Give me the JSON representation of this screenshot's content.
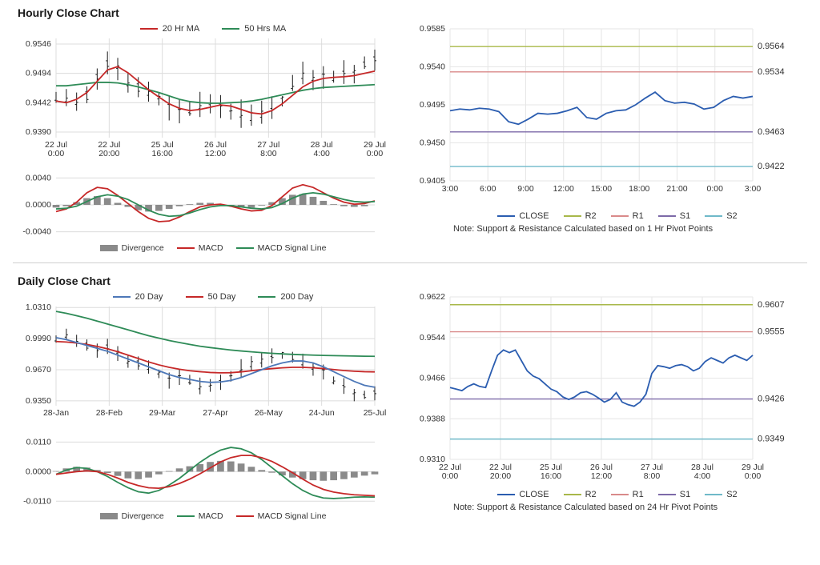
{
  "sections": {
    "hourly": {
      "title": "Hourly Close Chart",
      "left": {
        "price": {
          "type": "ohlc+ma",
          "yticks": [
            0.939,
            0.9442,
            0.9494,
            0.9546
          ],
          "ylim": [
            0.938,
            0.9556
          ],
          "xticks": [
            "22 Jul\n0:00",
            "22 Jul\n20:00",
            "25 Jul\n16:00",
            "26 Jul\n12:00",
            "27 Jul\n8:00",
            "28 Jul\n4:00",
            "29 Jul\n0:00"
          ],
          "xcount": 55,
          "legend": [
            {
              "label": "20 Hr MA",
              "color": "#c62828"
            },
            {
              "label": "50 Hrs MA",
              "color": "#2e8b57"
            }
          ],
          "colors": {
            "ohlc": "#1a1a1a",
            "ma20": "#c62828",
            "ma50": "#2e8b57",
            "grid": "#dcdcdc",
            "axis": "#9a9a9a"
          },
          "ohlc_amp": 0.0026,
          "ohlc_center_curve": [
            0.945,
            0.9445,
            0.9442,
            0.9455,
            0.949,
            0.951,
            0.95,
            0.9478,
            0.947,
            0.9462,
            0.9452,
            0.9435,
            0.9428,
            0.943,
            0.9438,
            0.9443,
            0.944,
            0.9428,
            0.9422,
            0.9418,
            0.9422,
            0.943,
            0.9445,
            0.9472,
            0.949,
            0.9488,
            0.9485,
            0.9488,
            0.9493,
            0.9498,
            0.951,
            0.9518
          ],
          "ma20": [
            0.9445,
            0.9442,
            0.9448,
            0.946,
            0.948,
            0.95,
            0.9506,
            0.9495,
            0.948,
            0.9465,
            0.9452,
            0.944,
            0.9432,
            0.9428,
            0.943,
            0.9434,
            0.9438,
            0.9436,
            0.943,
            0.9424,
            0.9422,
            0.9428,
            0.944,
            0.9455,
            0.947,
            0.948,
            0.9485,
            0.9487,
            0.9488,
            0.949,
            0.9494,
            0.9498
          ],
          "ma50": [
            0.9472,
            0.9472,
            0.9474,
            0.9476,
            0.9478,
            0.9478,
            0.9477,
            0.9474,
            0.947,
            0.9465,
            0.946,
            0.9454,
            0.9448,
            0.9444,
            0.9442,
            0.9441,
            0.9441,
            0.9442,
            0.9443,
            0.9445,
            0.9448,
            0.9452,
            0.9456,
            0.946,
            0.9464,
            0.9467,
            0.9469,
            0.947,
            0.9471,
            0.9472,
            0.9473,
            0.9474
          ]
        },
        "macd": {
          "type": "macd",
          "yticks": [
            -0.004,
            0.0,
            0.004
          ],
          "ylim": [
            -0.005,
            0.005
          ],
          "colors": {
            "divergence": "#8a8a8a",
            "macd": "#c62828",
            "signal": "#2e8b57",
            "axis": "#9a9a9a",
            "grid": "#dcdcdc"
          },
          "legend": [
            {
              "label": "Divergence",
              "kind": "bar",
              "color": "#8a8a8a"
            },
            {
              "label": "MACD",
              "kind": "line",
              "color": "#c62828"
            },
            {
              "label": "MACD Signal Line",
              "kind": "line",
              "color": "#2e8b57"
            }
          ],
          "divergence": [
            -0.0004,
            -0.0002,
            0.0004,
            0.001,
            0.0013,
            0.001,
            0.0003,
            -0.0003,
            -0.0008,
            -0.001,
            -0.0009,
            -0.0006,
            -0.0002,
            0.0001,
            0.0003,
            0.0003,
            0.0001,
            -0.0002,
            -0.0004,
            -0.0004,
            -0.0001,
            0.0004,
            0.001,
            0.0015,
            0.0016,
            0.0012,
            0.0006,
            0.0001,
            -0.0002,
            -0.0003,
            -0.0002,
            0.0
          ],
          "macd_line": [
            -0.001,
            -0.0006,
            0.0004,
            0.0018,
            0.0026,
            0.0024,
            0.0014,
            0.0002,
            -0.001,
            -0.002,
            -0.0025,
            -0.0024,
            -0.0018,
            -0.001,
            -0.0003,
            0.0,
            0.0001,
            -0.0002,
            -0.0006,
            -0.0009,
            -0.0008,
            -0.0001,
            0.0012,
            0.0025,
            0.003,
            0.0026,
            0.0018,
            0.001,
            0.0004,
            0.0001,
            0.0002,
            0.0006
          ],
          "signal_line": [
            -0.0006,
            -0.0005,
            -0.0002,
            0.0005,
            0.0012,
            0.0015,
            0.0013,
            0.0008,
            0.0,
            -0.0008,
            -0.0014,
            -0.0017,
            -0.0016,
            -0.0012,
            -0.0007,
            -0.0003,
            -0.0001,
            -0.0001,
            -0.0003,
            -0.0005,
            -0.0006,
            -0.0004,
            0.0002,
            0.001,
            0.0016,
            0.0018,
            0.0016,
            0.0012,
            0.0008,
            0.0005,
            0.0004,
            0.0005
          ]
        }
      },
      "right": {
        "type": "levels",
        "ylim": [
          0.9405,
          0.9585
        ],
        "yticks": [
          0.9405,
          0.945,
          0.9495,
          0.954,
          0.9585
        ],
        "xticks": [
          "3:00",
          "6:00",
          "9:00",
          "12:00",
          "15:00",
          "18:00",
          "21:00",
          "0:00",
          "3:00"
        ],
        "colors": {
          "close": "#2b5db0",
          "r2": "#a8b84a",
          "r1": "#d98a8a",
          "s1": "#7d6aa8",
          "s2": "#6fb9c9",
          "grid": "#e6e6e6",
          "axis": "#9a9a9a"
        },
        "levels": {
          "R2": 0.9564,
          "R1": 0.9534,
          "S1": 0.9463,
          "S2": 0.9422
        },
        "close": [
          0.9488,
          0.949,
          0.9489,
          0.9491,
          0.949,
          0.9487,
          0.9475,
          0.9472,
          0.9478,
          0.9485,
          0.9484,
          0.9485,
          0.9488,
          0.9492,
          0.948,
          0.9478,
          0.9485,
          0.9488,
          0.9489,
          0.9495,
          0.9503,
          0.951,
          0.95,
          0.9497,
          0.9498,
          0.9496,
          0.949,
          0.9492,
          0.95,
          0.9505,
          0.9503,
          0.9505
        ],
        "legend": [
          {
            "label": "CLOSE",
            "color": "#2b5db0"
          },
          {
            "label": "R2",
            "color": "#a8b84a"
          },
          {
            "label": "R1",
            "color": "#d98a8a"
          },
          {
            "label": "S1",
            "color": "#7d6aa8"
          },
          {
            "label": "S2",
            "color": "#6fb9c9"
          }
        ],
        "note": "Note: Support & Resistance Calculated based on 1 Hr Pivot Points"
      }
    },
    "daily": {
      "title": "Daily Close Chart",
      "left": {
        "price": {
          "type": "ohlc+ma",
          "yticks": [
            0.935,
            0.967,
            0.999,
            1.031
          ],
          "ylim": [
            0.93,
            1.032
          ],
          "xticks": [
            "28-Jan",
            "28-Feb",
            "29-Mar",
            "27-Apr",
            "26-May",
            "24-Jun",
            "25-Jul"
          ],
          "xcount": 60,
          "legend": [
            {
              "label": "20 Day",
              "color": "#4d78b8"
            },
            {
              "label": "50 Day",
              "color": "#c62828"
            },
            {
              "label": "200 Day",
              "color": "#2e8b57"
            }
          ],
          "colors": {
            "ohlc": "#1a1a1a",
            "ma20": "#4d78b8",
            "ma50": "#c62828",
            "ma200": "#2e8b57",
            "grid": "#dcdcdc",
            "axis": "#9a9a9a"
          },
          "ohlc_amp": 0.01,
          "ohlc_center_curve": [
            0.998,
            1.001,
            0.996,
            0.992,
            0.989,
            0.99,
            0.983,
            0.976,
            0.974,
            0.97,
            0.964,
            0.957,
            0.96,
            0.956,
            0.95,
            0.952,
            0.956,
            0.961,
            0.968,
            0.973,
            0.976,
            0.98,
            0.982,
            0.978,
            0.974,
            0.97,
            0.964,
            0.956,
            0.949,
            0.943,
            0.94,
            0.943
          ],
          "ma20": [
            1.0,
            0.998,
            0.995,
            0.992,
            0.989,
            0.986,
            0.982,
            0.978,
            0.974,
            0.97,
            0.966,
            0.962,
            0.959,
            0.957,
            0.955,
            0.954,
            0.9545,
            0.956,
            0.959,
            0.963,
            0.967,
            0.971,
            0.974,
            0.976,
            0.976,
            0.974,
            0.97,
            0.965,
            0.96,
            0.955,
            0.951,
            0.949
          ],
          "ma50": [
            0.996,
            0.9955,
            0.9945,
            0.993,
            0.991,
            0.9885,
            0.9855,
            0.982,
            0.9785,
            0.975,
            0.972,
            0.9695,
            0.9675,
            0.966,
            0.965,
            0.9642,
            0.9638,
            0.964,
            0.9648,
            0.966,
            0.9672,
            0.9682,
            0.969,
            0.9695,
            0.9695,
            0.969,
            0.9682,
            0.9672,
            0.9662,
            0.9655,
            0.965,
            0.9648
          ],
          "ma200": [
            1.027,
            1.025,
            1.0225,
            1.02,
            1.017,
            1.014,
            1.011,
            1.008,
            1.005,
            1.002,
            0.9995,
            0.997,
            0.995,
            0.993,
            0.9912,
            0.9898,
            0.9885,
            0.9873,
            0.9863,
            0.9854,
            0.9846,
            0.9839,
            0.9833,
            0.9828,
            0.9824,
            0.982,
            0.9817,
            0.9815,
            0.9813,
            0.9811,
            0.9809,
            0.9808
          ]
        },
        "macd": {
          "type": "macd",
          "yticks": [
            -0.011,
            0.0,
            0.011
          ],
          "ylim": [
            -0.013,
            0.012
          ],
          "colors": {
            "divergence": "#8a8a8a",
            "macd": "#2e8b57",
            "signal": "#c62828",
            "axis": "#9a9a9a",
            "grid": "#dcdcdc"
          },
          "legend": [
            {
              "label": "Divergence",
              "kind": "bar",
              "color": "#8a8a8a"
            },
            {
              "label": "MACD",
              "kind": "line",
              "color": "#2e8b57"
            },
            {
              "label": "MACD Signal Line",
              "kind": "line",
              "color": "#c62828"
            }
          ],
          "divergence": [
            0.0002,
            0.0012,
            0.0018,
            0.0015,
            0.0006,
            -0.0005,
            -0.0016,
            -0.0025,
            -0.0028,
            -0.0022,
            -0.001,
            0.0002,
            0.0012,
            0.002,
            0.0028,
            0.0036,
            0.004,
            0.0038,
            0.003,
            0.0018,
            0.0006,
            -0.0004,
            -0.0014,
            -0.0022,
            -0.0028,
            -0.0032,
            -0.0034,
            -0.0032,
            -0.0028,
            -0.0022,
            -0.0015,
            -0.001
          ],
          "macd_line": [
            -0.001,
            0.0006,
            0.0015,
            0.0012,
            0.0,
            -0.0018,
            -0.004,
            -0.006,
            -0.0075,
            -0.008,
            -0.007,
            -0.005,
            -0.0025,
            0.0005,
            0.0035,
            0.006,
            0.008,
            0.009,
            0.0085,
            0.007,
            0.0045,
            0.0015,
            -0.0015,
            -0.0045,
            -0.007,
            -0.0088,
            -0.0098,
            -0.01,
            -0.0098,
            -0.0095,
            -0.0094,
            -0.0095
          ],
          "signal_line": [
            -0.001,
            -0.0005,
            0.0,
            0.0003,
            0.0,
            -0.001,
            -0.0024,
            -0.004,
            -0.0052,
            -0.006,
            -0.0062,
            -0.0056,
            -0.0044,
            -0.0028,
            -0.0008,
            0.0014,
            0.0036,
            0.0052,
            0.006,
            0.006,
            0.0052,
            0.0038,
            0.0018,
            -0.0004,
            -0.0028,
            -0.005,
            -0.0066,
            -0.0076,
            -0.0082,
            -0.0086,
            -0.0088,
            -0.009
          ]
        }
      },
      "right": {
        "type": "levels",
        "ylim": [
          0.931,
          0.9622
        ],
        "yticks": [
          0.931,
          0.9388,
          0.9466,
          0.9544,
          0.9622
        ],
        "xticks": [
          "22 Jul\n0:00",
          "22 Jul\n20:00",
          "25 Jul\n16:00",
          "26 Jul\n12:00",
          "27 Jul\n8:00",
          "28 Jul\n4:00",
          "29 Jul\n0:00"
        ],
        "colors": {
          "close": "#2b5db0",
          "r2": "#a8b84a",
          "r1": "#d98a8a",
          "s1": "#7d6aa8",
          "s2": "#6fb9c9",
          "grid": "#e6e6e6",
          "axis": "#9a9a9a"
        },
        "levels": {
          "R2": 0.9607,
          "R1": 0.9555,
          "S1": 0.9426,
          "S2": 0.9349
        },
        "close": [
          0.9448,
          0.9445,
          0.9442,
          0.945,
          0.9455,
          0.945,
          0.9448,
          0.948,
          0.951,
          0.952,
          0.9515,
          0.952,
          0.95,
          0.948,
          0.947,
          0.9465,
          0.9455,
          0.9445,
          0.944,
          0.943,
          0.9425,
          0.943,
          0.9438,
          0.944,
          0.9435,
          0.9428,
          0.942,
          0.9425,
          0.9438,
          0.942,
          0.9415,
          0.9412,
          0.942,
          0.9435,
          0.9475,
          0.949,
          0.9488,
          0.9485,
          0.949,
          0.9492,
          0.9488,
          0.948,
          0.9485,
          0.9498,
          0.9505,
          0.95,
          0.9495,
          0.9505,
          0.951,
          0.9505,
          0.95,
          0.951
        ],
        "legend": [
          {
            "label": "CLOSE",
            "color": "#2b5db0"
          },
          {
            "label": "R2",
            "color": "#a8b84a"
          },
          {
            "label": "R1",
            "color": "#d98a8a"
          },
          {
            "label": "S1",
            "color": "#7d6aa8"
          },
          {
            "label": "S2",
            "color": "#6fb9c9"
          }
        ],
        "note": "Note: Support & Resistance Calculated based on 24 Hr Pivot Points"
      }
    }
  }
}
